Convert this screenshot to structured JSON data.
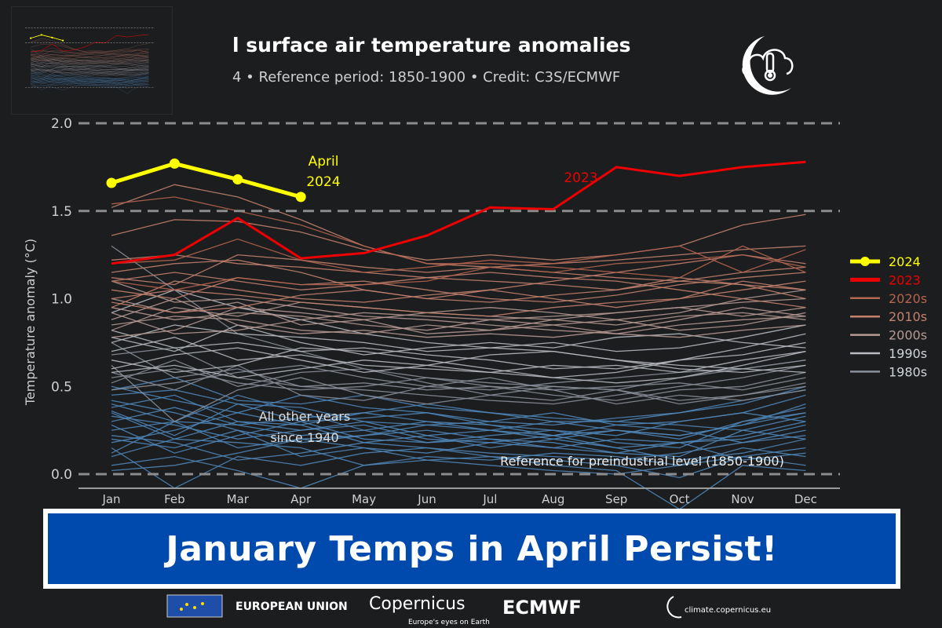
{
  "header": {
    "title": "l surface air temperature anomalies",
    "subtitle": "4 • Reference period: 1850-1900 • Credit: C3S/ECMWF",
    "logo_icon": "cloud-thermometer-icon"
  },
  "banner": {
    "text": "January Temps in April Persist!",
    "bg_color": "#004aad"
  },
  "footer": {
    "eu_label": "EUROPEAN UNION",
    "copernicus_label": "Copernicus",
    "copernicus_tagline": "Europe's eyes on Earth",
    "ecmwf_label": "ECMWF",
    "climate_url": "climate.copernicus.eu"
  },
  "chart_data": {
    "type": "line",
    "ylabel": "Temperature anomaly (°C)",
    "ylim": [
      0.0,
      2.0
    ],
    "yticks": [
      "0.0",
      "0.5",
      "1.0",
      "1.5",
      "2.0"
    ],
    "reference_lines": [
      0.0,
      1.5,
      2.0
    ],
    "categories": [
      "Jan",
      "Feb",
      "Mar",
      "Apr",
      "May",
      "Jun",
      "Jul",
      "Aug",
      "Sep",
      "Oct",
      "Nov",
      "Dec"
    ],
    "annotations": {
      "april_2024_line1": "April",
      "april_2024_line2": "2024",
      "label_2023": "2023",
      "other_years_line1": "All other years",
      "other_years_line2": "since 1940",
      "reference_label": "Reference for preindustrial level (1850-1900)"
    },
    "legend": {
      "position": "right",
      "items": [
        {
          "label": "2024",
          "color": "#ffff00"
        },
        {
          "label": "2023",
          "color": "#ee0000"
        },
        {
          "label": "2020s",
          "color": "#b4644f"
        },
        {
          "label": "2010s",
          "color": "#c4826e"
        },
        {
          "label": "2000s",
          "color": "#b59a94"
        },
        {
          "label": "1990s",
          "color": "#b8bcc2"
        },
        {
          "label": "1980s",
          "color": "#8a9099"
        }
      ]
    },
    "other_years_color": "#4f86b8",
    "highlight_series": [
      {
        "name": "2024",
        "color": "#ffff00",
        "values": [
          1.66,
          1.77,
          1.68,
          1.58
        ]
      },
      {
        "name": "2023",
        "color": "#ee0000",
        "values": [
          1.2,
          1.25,
          1.46,
          1.23,
          1.26,
          1.36,
          1.52,
          1.51,
          1.75,
          1.7,
          1.75,
          1.78
        ]
      }
    ],
    "background_series": [
      {
        "group": "other",
        "values": [
          0.45,
          0.48,
          0.4,
          0.38,
          0.3,
          0.28,
          0.25,
          0.3,
          0.25,
          0.22,
          0.28,
          0.35
        ]
      },
      {
        "group": "other",
        "values": [
          0.35,
          0.2,
          0.3,
          0.25,
          0.28,
          0.2,
          0.18,
          0.15,
          0.2,
          0.18,
          0.22,
          0.3
        ]
      },
      {
        "group": "other",
        "values": [
          0.25,
          0.3,
          0.15,
          0.2,
          0.22,
          0.25,
          0.2,
          0.18,
          0.12,
          0.1,
          0.25,
          0.2
        ]
      },
      {
        "group": "other",
        "values": [
          0.15,
          -0.08,
          0.1,
          0.05,
          0.12,
          0.15,
          0.1,
          0.08,
          0.05,
          -0.02,
          0.1,
          0.15
        ]
      },
      {
        "group": "other",
        "values": [
          0.05,
          0.1,
          0.02,
          -0.08,
          0.05,
          0.08,
          0.1,
          0.05,
          0.02,
          -0.2,
          0.05,
          0.02
        ]
      },
      {
        "group": "other",
        "values": [
          0.4,
          0.3,
          0.45,
          0.35,
          0.25,
          0.3,
          0.28,
          0.22,
          0.25,
          0.2,
          0.3,
          0.38
        ]
      },
      {
        "group": "other",
        "values": [
          0.3,
          0.38,
          0.28,
          0.32,
          0.35,
          0.3,
          0.25,
          0.22,
          0.28,
          0.3,
          0.35,
          0.45
        ]
      },
      {
        "group": "other",
        "values": [
          0.2,
          0.15,
          0.25,
          0.1,
          0.15,
          0.12,
          0.18,
          0.22,
          0.15,
          0.18,
          0.2,
          0.28
        ]
      },
      {
        "group": "other",
        "values": [
          0.5,
          0.42,
          0.35,
          0.45,
          0.38,
          0.35,
          0.3,
          0.28,
          0.32,
          0.35,
          0.4,
          0.5
        ]
      },
      {
        "group": "other",
        "values": [
          0.1,
          0.2,
          0.18,
          0.15,
          0.05,
          0.1,
          0.08,
          0.12,
          0.1,
          0.05,
          0.15,
          0.1
        ]
      },
      {
        "group": "other",
        "values": [
          0.38,
          0.45,
          0.3,
          0.28,
          0.35,
          0.4,
          0.35,
          0.3,
          0.3,
          0.28,
          0.25,
          0.33
        ]
      },
      {
        "group": "other",
        "values": [
          0.28,
          0.12,
          0.22,
          0.3,
          0.2,
          0.18,
          0.22,
          0.25,
          0.18,
          0.15,
          0.3,
          0.35
        ]
      },
      {
        "group": "other",
        "values": [
          0.42,
          0.35,
          0.25,
          0.18,
          0.22,
          0.28,
          0.3,
          0.35,
          0.28,
          0.25,
          0.18,
          0.22
        ]
      },
      {
        "group": "other",
        "values": [
          0.18,
          0.25,
          0.35,
          0.28,
          0.18,
          0.15,
          0.12,
          0.1,
          0.08,
          0.12,
          0.18,
          0.25
        ]
      },
      {
        "group": "other",
        "values": [
          0.02,
          0.05,
          0.12,
          0.2,
          0.15,
          0.08,
          0.05,
          0.02,
          0.0,
          0.05,
          0.1,
          0.05
        ]
      },
      {
        "group": "other",
        "values": [
          0.33,
          0.28,
          0.2,
          0.25,
          0.3,
          0.22,
          0.15,
          0.2,
          0.25,
          0.22,
          0.28,
          0.4
        ]
      },
      {
        "group": "other",
        "values": [
          0.48,
          0.55,
          0.42,
          0.4,
          0.45,
          0.38,
          0.35,
          0.32,
          0.3,
          0.35,
          0.42,
          0.48
        ]
      },
      {
        "group": "other",
        "values": [
          0.22,
          0.18,
          0.08,
          0.12,
          0.18,
          0.22,
          0.25,
          0.2,
          0.15,
          0.08,
          0.12,
          0.2
        ]
      },
      {
        "group": "other",
        "values": [
          0.12,
          0.3,
          0.28,
          0.22,
          0.25,
          0.18,
          0.2,
          0.15,
          0.12,
          0.18,
          0.08,
          0.12
        ]
      },
      {
        "group": "other",
        "values": [
          0.36,
          0.22,
          0.4,
          0.3,
          0.32,
          0.35,
          0.28,
          0.25,
          0.22,
          0.3,
          0.35,
          0.3
        ]
      },
      {
        "group": "1980s",
        "values": [
          0.75,
          0.55,
          0.6,
          0.5,
          0.48,
          0.45,
          0.42,
          0.4,
          0.45,
          0.5,
          0.55,
          0.62
        ]
      },
      {
        "group": "1980s",
        "values": [
          0.55,
          0.6,
          0.52,
          0.48,
          0.5,
          0.55,
          0.5,
          0.45,
          0.42,
          0.48,
          0.5,
          0.58
        ]
      },
      {
        "group": "1980s",
        "values": [
          0.62,
          0.3,
          0.48,
          0.55,
          0.45,
          0.4,
          0.45,
          0.5,
          0.48,
          0.42,
          0.45,
          0.5
        ]
      },
      {
        "group": "1980s",
        "values": [
          0.48,
          0.52,
          0.58,
          0.62,
          0.55,
          0.5,
          0.48,
          0.52,
          0.55,
          0.58,
          0.6,
          0.65
        ]
      },
      {
        "group": "1980s",
        "values": [
          0.68,
          0.72,
          0.55,
          0.5,
          0.52,
          0.48,
          0.5,
          0.48,
          0.4,
          0.45,
          0.42,
          0.48
        ]
      },
      {
        "group": "1980s",
        "values": [
          1.3,
          1.05,
          0.8,
          0.7,
          0.6,
          0.55,
          0.52,
          0.5,
          0.48,
          0.55,
          0.6,
          0.65
        ]
      },
      {
        "group": "1980s",
        "values": [
          0.58,
          0.48,
          0.62,
          0.45,
          0.42,
          0.5,
          0.55,
          0.48,
          0.5,
          0.52,
          0.48,
          0.55
        ]
      },
      {
        "group": "1980s",
        "values": [
          0.52,
          0.65,
          0.5,
          0.58,
          0.6,
          0.52,
          0.45,
          0.42,
          0.48,
          0.4,
          0.45,
          0.52
        ]
      },
      {
        "group": "1990s",
        "values": [
          0.7,
          0.78,
          0.65,
          0.68,
          0.62,
          0.6,
          0.58,
          0.62,
          0.6,
          0.65,
          0.68,
          0.75
        ]
      },
      {
        "group": "1990s",
        "values": [
          0.82,
          0.72,
          0.75,
          0.7,
          0.72,
          0.68,
          0.65,
          0.6,
          0.62,
          0.58,
          0.65,
          0.7
        ]
      },
      {
        "group": "1990s",
        "values": [
          0.6,
          0.68,
          0.72,
          0.65,
          0.58,
          0.62,
          0.68,
          0.7,
          0.65,
          0.6,
          0.58,
          0.62
        ]
      },
      {
        "group": "1990s",
        "values": [
          0.92,
          1.05,
          0.95,
          0.88,
          0.8,
          0.75,
          0.72,
          0.7,
          0.65,
          0.62,
          0.6,
          0.58
        ]
      },
      {
        "group": "1990s",
        "values": [
          0.65,
          0.58,
          0.62,
          0.72,
          0.7,
          0.65,
          0.6,
          0.55,
          0.58,
          0.65,
          0.72,
          0.8
        ]
      },
      {
        "group": "1990s",
        "values": [
          0.75,
          0.85,
          0.8,
          0.78,
          0.75,
          0.7,
          0.72,
          0.75,
          0.7,
          0.72,
          0.78,
          0.85
        ]
      },
      {
        "group": "1990s",
        "values": [
          0.58,
          0.62,
          0.55,
          0.6,
          0.65,
          0.62,
          0.58,
          0.55,
          0.52,
          0.55,
          0.62,
          0.7
        ]
      },
      {
        "group": "1990s",
        "values": [
          0.78,
          0.7,
          0.85,
          0.75,
          0.68,
          0.72,
          0.75,
          0.72,
          0.78,
          0.8,
          0.75,
          0.72
        ]
      },
      {
        "group": "2000s",
        "values": [
          0.85,
          0.9,
          0.88,
          0.82,
          0.8,
          0.85,
          0.82,
          0.88,
          0.85,
          0.9,
          0.92,
          0.88
        ]
      },
      {
        "group": "2000s",
        "values": [
          0.95,
          0.88,
          0.92,
          0.9,
          0.85,
          0.82,
          0.88,
          0.9,
          0.92,
          0.95,
          0.98,
          1.0
        ]
      },
      {
        "group": "2000s",
        "values": [
          1.1,
          0.98,
          1.0,
          0.95,
          0.9,
          0.88,
          0.85,
          0.82,
          0.8,
          0.85,
          0.88,
          0.9
        ]
      },
      {
        "group": "2000s",
        "values": [
          0.78,
          0.82,
          0.95,
          0.92,
          0.88,
          0.8,
          0.82,
          0.85,
          0.88,
          0.82,
          0.85,
          0.92
        ]
      },
      {
        "group": "2000s",
        "values": [
          0.88,
          1.0,
          0.85,
          0.8,
          0.82,
          0.78,
          0.8,
          0.78,
          0.82,
          0.88,
          0.95,
          0.9
        ]
      },
      {
        "group": "2000s",
        "values": [
          0.92,
          0.8,
          0.82,
          0.88,
          0.92,
          0.9,
          0.88,
          0.85,
          0.8,
          0.78,
          0.82,
          0.85
        ]
      },
      {
        "group": "2000s",
        "values": [
          0.82,
          0.95,
          0.9,
          0.98,
          0.95,
          0.92,
          0.9,
          0.88,
          0.92,
          0.95,
          0.9,
          0.95
        ]
      },
      {
        "group": "2000s",
        "values": [
          1.0,
          0.92,
          0.98,
          0.85,
          0.88,
          0.92,
          0.95,
          0.92,
          0.88,
          0.92,
          1.0,
          1.05
        ]
      },
      {
        "group": "2010s",
        "values": [
          1.0,
          1.05,
          1.02,
          0.98,
          0.95,
          0.92,
          0.9,
          0.95,
          0.98,
          1.0,
          1.05,
          1.1
        ]
      },
      {
        "group": "2010s",
        "values": [
          1.52,
          1.65,
          1.58,
          1.45,
          1.3,
          1.2,
          1.18,
          1.15,
          1.12,
          1.1,
          1.08,
          1.05
        ]
      },
      {
        "group": "2010s",
        "values": [
          1.15,
          1.2,
          1.22,
          1.15,
          1.05,
          1.0,
          1.05,
          1.1,
          1.15,
          1.2,
          1.25,
          1.2
        ]
      },
      {
        "group": "2010s",
        "values": [
          1.05,
          1.0,
          1.12,
          1.08,
          1.1,
          1.05,
          1.0,
          0.98,
          1.02,
          1.08,
          1.12,
          1.15
        ]
      },
      {
        "group": "2010s",
        "values": [
          0.95,
          1.1,
          1.05,
          1.0,
          0.98,
          1.02,
          1.05,
          1.0,
          0.95,
          1.0,
          1.1,
          1.05
        ]
      },
      {
        "group": "2010s",
        "values": [
          1.22,
          1.25,
          1.2,
          1.18,
          1.15,
          1.12,
          1.1,
          1.08,
          1.05,
          1.1,
          1.15,
          1.18
        ]
      },
      {
        "group": "2010s",
        "values": [
          0.98,
          0.92,
          0.95,
          1.02,
          1.05,
          1.0,
          0.98,
          1.02,
          1.05,
          1.12,
          1.08,
          1.0
        ]
      },
      {
        "group": "2010s",
        "values": [
          1.1,
          1.15,
          1.1,
          1.05,
          1.08,
          1.12,
          1.15,
          1.12,
          1.1,
          1.05,
          1.0,
          0.95
        ]
      },
      {
        "group": "2010s",
        "values": [
          1.12,
          1.08,
          1.25,
          1.22,
          1.18,
          1.15,
          1.18,
          1.2,
          1.22,
          1.25,
          1.28,
          1.3
        ]
      },
      {
        "group": "2010s",
        "values": [
          1.36,
          1.45,
          1.44,
          1.38,
          1.28,
          1.22,
          1.25,
          1.22,
          1.25,
          1.3,
          1.42,
          1.48
        ]
      },
      {
        "group": "2020s",
        "values": [
          1.54,
          1.58,
          1.5,
          1.42,
          1.3,
          1.2,
          1.2,
          1.18,
          1.15,
          1.12,
          1.3,
          1.15
        ]
      },
      {
        "group": "2020s",
        "values": [
          1.1,
          1.05,
          1.12,
          1.08,
          1.08,
          1.1,
          1.18,
          1.15,
          1.2,
          1.22,
          1.25,
          1.18
        ]
      },
      {
        "group": "2020s",
        "values": [
          1.2,
          1.22,
          1.34,
          1.22,
          1.15,
          1.18,
          1.22,
          1.2,
          1.25,
          1.3,
          1.15,
          1.28
        ]
      }
    ]
  }
}
